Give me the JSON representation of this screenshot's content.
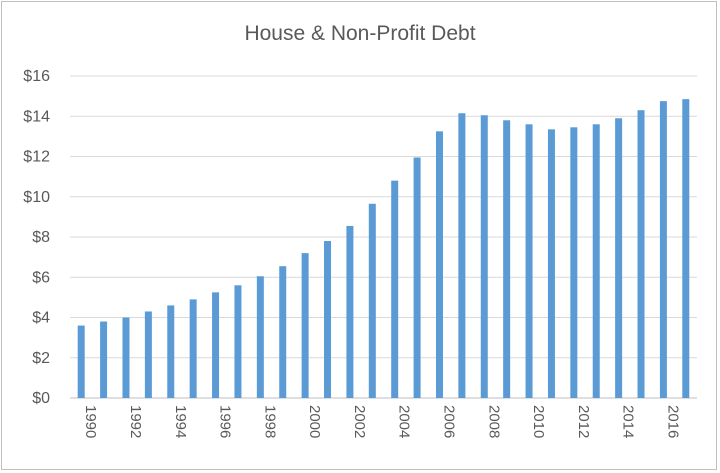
{
  "chart_data": {
    "type": "bar",
    "title": "House & Non-Profit Debt",
    "xlabel": "",
    "ylabel": "",
    "ylim": [
      0,
      16
    ],
    "yticks": [
      0,
      2,
      4,
      6,
      8,
      10,
      12,
      14,
      16
    ],
    "ytick_labels": [
      "$0",
      "$2",
      "$4",
      "$6",
      "$8",
      "$10",
      "$12",
      "$14",
      "$16"
    ],
    "grid": true,
    "bar_color": "#5b9bd5",
    "categories": [
      "1990",
      "1991",
      "1992",
      "1993",
      "1994",
      "1995",
      "1996",
      "1997",
      "1998",
      "1999",
      "2000",
      "2001",
      "2002",
      "2003",
      "2004",
      "2005",
      "2006",
      "2007",
      "2008",
      "2009",
      "2010",
      "2011",
      "2012",
      "2013",
      "2014",
      "2015",
      "2016",
      "2017"
    ],
    "xtick_labels": [
      "1990",
      "1992",
      "1994",
      "1996",
      "1998",
      "2000",
      "2002",
      "2004",
      "2006",
      "2008",
      "2010",
      "2012",
      "2014",
      "2016"
    ],
    "values": [
      3.6,
      3.8,
      4.0,
      4.3,
      4.6,
      4.9,
      5.25,
      5.6,
      6.05,
      6.55,
      7.2,
      7.8,
      8.55,
      9.65,
      10.8,
      11.95,
      13.25,
      14.15,
      14.05,
      13.8,
      13.6,
      13.35,
      13.45,
      13.6,
      13.9,
      14.3,
      14.75,
      14.85
    ]
  }
}
